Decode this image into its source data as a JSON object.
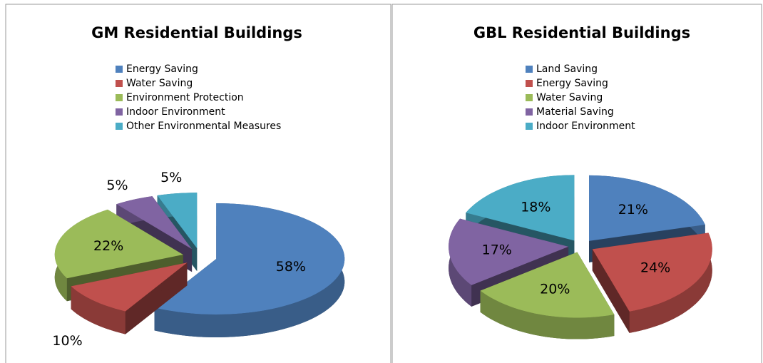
{
  "chart_data": [
    {
      "type": "pie",
      "title": "GM Residential Buildings",
      "categories": [
        "Energy Saving",
        "Water Saving",
        "Environment Protection",
        "Indoor Environment",
        "Other Environmental Measures"
      ],
      "values": [
        58,
        10,
        22,
        5,
        5
      ],
      "value_labels": [
        "58%",
        "10%",
        "22%",
        "5%",
        "5%"
      ],
      "colors": [
        "#4f81bd",
        "#c0504d",
        "#9bbb59",
        "#8064a2",
        "#4bacc6"
      ]
    },
    {
      "type": "pie",
      "title": "GBL Residential Buildings",
      "categories": [
        "Land Saving",
        "Energy Saving",
        "Water Saving",
        "Material Saving",
        "Indoor Environment"
      ],
      "values": [
        21,
        24,
        20,
        17,
        18
      ],
      "value_labels": [
        "21%",
        "24%",
        "20%",
        "17%",
        "18%"
      ],
      "colors": [
        "#4f81bd",
        "#c0504d",
        "#9bbb59",
        "#8064a2",
        "#4bacc6"
      ]
    }
  ]
}
